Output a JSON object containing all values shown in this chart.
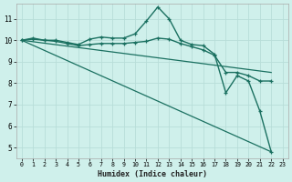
{
  "xlabel": "Humidex (Indice chaleur)",
  "bg_color": "#cff0eb",
  "grid_color": "#b8ddd8",
  "line_color": "#1a7060",
  "xlim": [
    -0.5,
    23.5
  ],
  "ylim": [
    4.5,
    11.7
  ],
  "xticks": [
    0,
    1,
    2,
    3,
    4,
    5,
    6,
    7,
    8,
    9,
    10,
    11,
    12,
    13,
    14,
    15,
    16,
    17,
    18,
    19,
    20,
    21,
    22,
    23
  ],
  "yticks": [
    5,
    6,
    7,
    8,
    9,
    10,
    11
  ],
  "lines": [
    {
      "x": [
        0,
        1,
        2,
        3,
        4,
        5,
        6,
        7,
        8,
        9,
        10,
        11,
        12,
        13,
        14,
        15,
        16,
        17,
        18,
        19,
        20,
        21,
        22
      ],
      "y": [
        10.0,
        10.1,
        10.0,
        10.0,
        9.9,
        9.8,
        10.05,
        10.15,
        10.1,
        10.1,
        10.3,
        10.9,
        11.55,
        11.0,
        10.0,
        9.8,
        9.75,
        9.35,
        7.55,
        8.35,
        8.1,
        6.7,
        4.8
      ],
      "marker": true,
      "lw": 1.0
    },
    {
      "x": [
        0,
        1,
        2,
        3,
        4,
        5,
        6,
        7,
        8,
        9,
        10,
        11,
        12,
        13,
        14,
        15,
        16,
        17,
        18,
        19,
        20,
        21,
        22
      ],
      "y": [
        10.0,
        10.05,
        10.0,
        9.95,
        9.85,
        9.75,
        9.8,
        9.85,
        9.85,
        9.85,
        9.9,
        9.95,
        10.1,
        10.05,
        9.85,
        9.7,
        9.55,
        9.3,
        8.5,
        8.5,
        8.35,
        8.1,
        8.1
      ],
      "marker": true,
      "lw": 1.0
    },
    {
      "x": [
        0,
        22
      ],
      "y": [
        10.0,
        8.5
      ],
      "marker": false,
      "lw": 0.9
    },
    {
      "x": [
        0,
        22
      ],
      "y": [
        10.0,
        4.8
      ],
      "marker": false,
      "lw": 0.9
    }
  ]
}
